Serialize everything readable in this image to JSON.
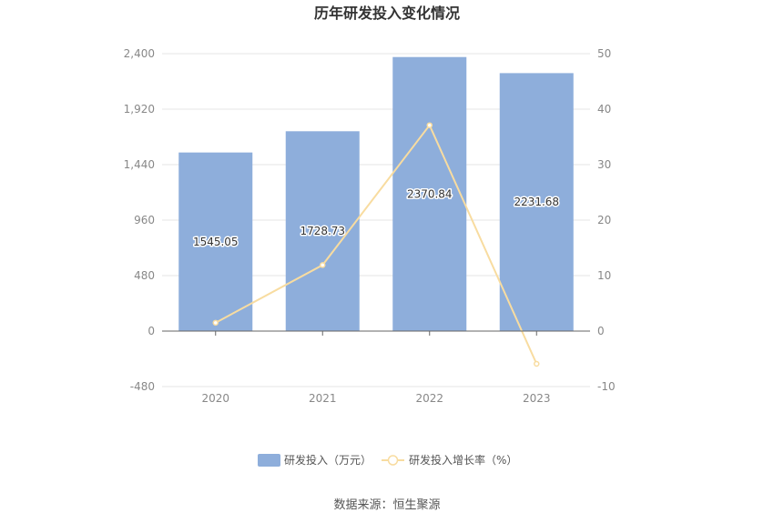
{
  "chart_data": {
    "type": "bar",
    "title": "历年研发投入变化情况",
    "categories": [
      "2020",
      "2021",
      "2022",
      "2023"
    ],
    "series": [
      {
        "name": "研发投入（万元）",
        "type": "bar",
        "axis": "left",
        "color": "#8eaedb",
        "values": [
          1545.05,
          1728.73,
          2370.84,
          2231.68
        ],
        "labels": [
          "1545.05",
          "1728.73",
          "2370.84",
          "2231.68"
        ]
      },
      {
        "name": "研发投入增长率（%）",
        "type": "line",
        "axis": "right",
        "color": "#f8dca0",
        "values": [
          1.5,
          11.9,
          37.1,
          -5.9
        ]
      }
    ],
    "y_left": {
      "ylim": [
        -480,
        2400
      ],
      "ticks": [
        "-480",
        "0",
        "480",
        "960",
        "1,440",
        "1,920",
        "2,400"
      ],
      "tick_values": [
        -480,
        0,
        480,
        960,
        1440,
        1920,
        2400
      ]
    },
    "y_right": {
      "ylim": [
        -10,
        50
      ],
      "ticks": [
        "-10",
        "0",
        "10",
        "20",
        "30",
        "40",
        "50"
      ],
      "tick_values": [
        -10,
        0,
        10,
        20,
        30,
        40,
        50
      ]
    },
    "grid": true,
    "legend_position": "bottom"
  },
  "source": "数据来源：恒生聚源"
}
